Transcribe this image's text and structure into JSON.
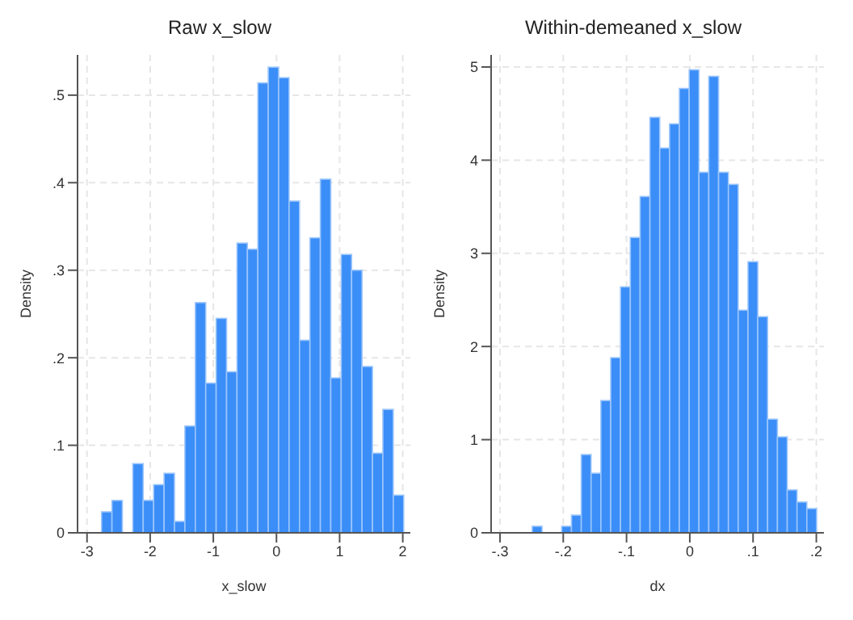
{
  "chart_data": [
    {
      "type": "histogram",
      "title": "Raw x_slow",
      "xlabel": "x_slow",
      "ylabel": "Density",
      "color": "#3b8ef8",
      "bins": [
        -2.77,
        -2.605,
        -2.44,
        -2.275,
        -2.11,
        -1.945,
        -1.78,
        -1.615,
        -1.45,
        -1.285,
        -1.12,
        -0.955,
        -0.79,
        -0.625,
        -0.46,
        -0.295,
        -0.13,
        0.035,
        0.2,
        0.365,
        0.53,
        0.695,
        0.86,
        1.025,
        1.19,
        1.355,
        1.52,
        1.685,
        1.85,
        2.015
      ],
      "values": [
        0.024,
        0.037,
        0,
        0.079,
        0.037,
        0.055,
        0.068,
        0.013,
        0.122,
        0.263,
        0.171,
        0.245,
        0.184,
        0.331,
        0.324,
        0.514,
        0.532,
        0.52,
        0.379,
        0.22,
        0.337,
        0.404,
        0.177,
        0.318,
        0.3,
        0.19,
        0.091,
        0.141,
        0.043
      ],
      "xlim": [
        -3.15,
        2.12
      ],
      "xticks": [
        -3,
        -2,
        -1,
        0,
        1,
        2
      ],
      "ylim": [
        0,
        0.546
      ],
      "yticks": [
        0,
        {
          "value": 0.1,
          "label": ".1"
        },
        {
          "value": 0.2,
          "label": ".2"
        },
        {
          "value": 0.3,
          "label": ".3"
        },
        {
          "value": 0.4,
          "label": ".4"
        },
        {
          "value": 0.5,
          "label": ".5"
        }
      ],
      "grid": true
    },
    {
      "type": "histogram",
      "title": "Within-demeaned x_slow",
      "xlabel": "dx",
      "ylabel": "Density",
      "color": "#3b8ef8",
      "bins": [
        -0.249,
        -0.2335,
        -0.218,
        -0.2025,
        -0.187,
        -0.1715,
        -0.156,
        -0.1405,
        -0.125,
        -0.1095,
        -0.094,
        -0.0785,
        -0.063,
        -0.0475,
        -0.032,
        -0.0165,
        -0.001,
        0.0145,
        0.03,
        0.0455,
        0.061,
        0.0765,
        0.092,
        0.1075,
        0.123,
        0.1385,
        0.154,
        0.1695,
        0.185,
        0.2005
      ],
      "values": [
        0.07,
        0,
        0,
        0.07,
        0.19,
        0.84,
        0.64,
        1.42,
        1.88,
        2.64,
        3.17,
        3.61,
        4.46,
        4.13,
        4.39,
        4.77,
        4.97,
        3.87,
        4.9,
        3.87,
        3.74,
        2.39,
        2.91,
        2.32,
        1.22,
        1.03,
        0.46,
        0.33,
        0.26
      ],
      "xlim": [
        -0.314,
        0.212
      ],
      "xticks": [
        {
          "value": -0.3,
          "label": "-.3"
        },
        {
          "value": -0.2,
          "label": "-.2"
        },
        {
          "value": -0.1,
          "label": "-.1"
        },
        0,
        {
          "value": 0.1,
          "label": ".1"
        },
        {
          "value": 0.2,
          "label": ".2"
        }
      ],
      "ylim": [
        0,
        5.13
      ],
      "yticks": [
        0,
        1,
        2,
        3,
        4,
        5
      ],
      "grid": true
    }
  ]
}
